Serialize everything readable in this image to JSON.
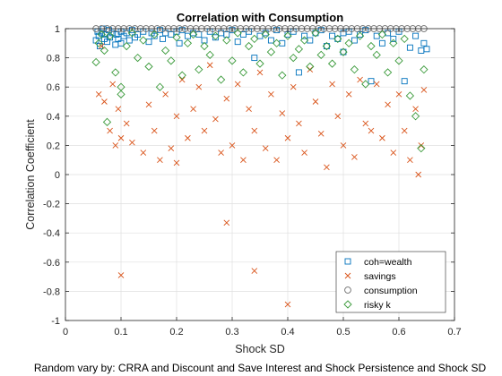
{
  "chart_data": {
    "type": "scatter",
    "title": "Correlation with Consumption",
    "xlabel": "Shock SD",
    "ylabel": "Correlation Coefficient",
    "footnote": "Random vary by: CRRA and Discount and Save Interest and Shock Persistence and Shock SD",
    "xlim": [
      0,
      0.7
    ],
    "ylim": [
      -1,
      1
    ],
    "xticks": [
      0,
      0.1,
      0.2,
      0.3,
      0.4,
      0.5,
      0.6,
      0.7
    ],
    "yticks": [
      -1,
      -0.8,
      -0.6,
      -0.4,
      -0.2,
      0,
      0.2,
      0.4,
      0.6,
      0.8,
      1
    ],
    "grid": true,
    "legend_position": "bottom-right",
    "series": [
      {
        "name": "coh=wealth",
        "marker": "square",
        "color": "#0072BD",
        "x": [
          0.055,
          0.058,
          0.06,
          0.062,
          0.065,
          0.068,
          0.07,
          0.072,
          0.075,
          0.078,
          0.08,
          0.085,
          0.09,
          0.092,
          0.095,
          0.1,
          0.1,
          0.105,
          0.11,
          0.115,
          0.12,
          0.125,
          0.13,
          0.14,
          0.15,
          0.155,
          0.16,
          0.17,
          0.175,
          0.18,
          0.19,
          0.2,
          0.205,
          0.21,
          0.22,
          0.23,
          0.24,
          0.25,
          0.26,
          0.27,
          0.28,
          0.29,
          0.3,
          0.31,
          0.32,
          0.33,
          0.34,
          0.35,
          0.36,
          0.37,
          0.38,
          0.39,
          0.4,
          0.41,
          0.42,
          0.43,
          0.44,
          0.45,
          0.46,
          0.47,
          0.48,
          0.49,
          0.5,
          0.5,
          0.51,
          0.52,
          0.53,
          0.54,
          0.55,
          0.56,
          0.57,
          0.58,
          0.59,
          0.6,
          0.61,
          0.62,
          0.63,
          0.64,
          0.645,
          0.65
        ],
        "y": [
          0.92,
          0.98,
          0.95,
          0.88,
          0.97,
          1.0,
          0.93,
          0.96,
          0.91,
          0.99,
          0.94,
          0.97,
          0.89,
          0.96,
          0.93,
          0.98,
          0.9,
          0.95,
          0.97,
          0.92,
          0.99,
          0.94,
          0.96,
          0.98,
          0.91,
          0.97,
          0.95,
          0.99,
          0.93,
          0.97,
          0.96,
          0.98,
          0.9,
          0.99,
          0.95,
          0.97,
          0.96,
          0.92,
          0.98,
          0.94,
          0.97,
          0.96,
          0.99,
          0.91,
          0.96,
          0.98,
          0.8,
          0.95,
          0.97,
          0.92,
          0.99,
          0.9,
          0.96,
          0.98,
          0.7,
          0.95,
          0.92,
          0.97,
          0.99,
          0.88,
          0.95,
          0.93,
          0.84,
          0.97,
          0.98,
          0.92,
          0.96,
          0.99,
          0.64,
          0.95,
          0.9,
          0.97,
          0.93,
          0.98,
          0.64,
          0.87,
          0.95,
          0.85,
          0.9,
          0.86
        ]
      },
      {
        "name": "savings",
        "marker": "x",
        "color": "#D95319",
        "x": [
          0.06,
          0.065,
          0.07,
          0.08,
          0.085,
          0.09,
          0.095,
          0.1,
          0.1,
          0.11,
          0.12,
          0.14,
          0.15,
          0.16,
          0.17,
          0.18,
          0.19,
          0.2,
          0.2,
          0.21,
          0.22,
          0.23,
          0.24,
          0.25,
          0.26,
          0.27,
          0.28,
          0.29,
          0.29,
          0.3,
          0.31,
          0.32,
          0.33,
          0.34,
          0.34,
          0.35,
          0.36,
          0.37,
          0.38,
          0.39,
          0.4,
          0.4,
          0.41,
          0.42,
          0.43,
          0.44,
          0.45,
          0.46,
          0.47,
          0.48,
          0.49,
          0.5,
          0.51,
          0.52,
          0.53,
          0.54,
          0.55,
          0.56,
          0.57,
          0.58,
          0.59,
          0.6,
          0.61,
          0.62,
          0.63,
          0.635,
          0.64,
          0.645
        ],
        "y": [
          0.55,
          0.88,
          0.5,
          0.3,
          0.62,
          0.2,
          0.45,
          -0.69,
          0.25,
          0.35,
          0.22,
          0.15,
          0.48,
          0.3,
          0.1,
          0.55,
          0.18,
          0.4,
          0.08,
          0.65,
          0.25,
          0.45,
          0.6,
          0.3,
          0.75,
          0.38,
          0.15,
          0.52,
          -0.33,
          0.2,
          0.62,
          0.1,
          0.45,
          -0.66,
          0.3,
          0.7,
          0.18,
          0.55,
          0.1,
          0.42,
          0.25,
          -0.89,
          0.6,
          0.35,
          0.15,
          0.72,
          0.5,
          0.28,
          0.05,
          0.62,
          0.4,
          0.2,
          0.55,
          0.12,
          0.65,
          0.35,
          0.3,
          0.62,
          0.25,
          0.48,
          0.15,
          0.55,
          0.3,
          0.1,
          0.45,
          0.0,
          0.2,
          0.58
        ]
      },
      {
        "name": "consumption",
        "marker": "circle",
        "color": "#6E6E6E",
        "x": [
          0.055,
          0.065,
          0.075,
          0.085,
          0.095,
          0.105,
          0.115,
          0.125,
          0.135,
          0.145,
          0.155,
          0.165,
          0.175,
          0.185,
          0.195,
          0.205,
          0.215,
          0.225,
          0.235,
          0.245,
          0.255,
          0.265,
          0.275,
          0.285,
          0.295,
          0.305,
          0.315,
          0.325,
          0.335,
          0.345,
          0.355,
          0.365,
          0.375,
          0.385,
          0.395,
          0.405,
          0.415,
          0.425,
          0.435,
          0.445,
          0.455,
          0.465,
          0.475,
          0.485,
          0.495,
          0.505,
          0.515,
          0.525,
          0.535,
          0.545,
          0.555,
          0.565,
          0.575,
          0.585,
          0.595,
          0.605,
          0.615,
          0.625,
          0.635,
          0.645
        ],
        "y": [
          1.0,
          1.0,
          1.0,
          1.0,
          1.0,
          1.0,
          1.0,
          1.0,
          1.0,
          1.0,
          1.0,
          1.0,
          1.0,
          1.0,
          1.0,
          1.0,
          1.0,
          1.0,
          1.0,
          1.0,
          1.0,
          1.0,
          1.0,
          1.0,
          1.0,
          1.0,
          1.0,
          1.0,
          1.0,
          1.0,
          1.0,
          1.0,
          1.0,
          1.0,
          1.0,
          1.0,
          1.0,
          1.0,
          1.0,
          1.0,
          1.0,
          1.0,
          1.0,
          1.0,
          1.0,
          1.0,
          1.0,
          1.0,
          1.0,
          1.0,
          1.0,
          1.0,
          1.0,
          1.0,
          1.0,
          1.0,
          1.0,
          1.0,
          1.0,
          1.0
        ]
      },
      {
        "name": "risky k",
        "marker": "diamond",
        "color": "#3A9A3A",
        "x": [
          0.055,
          0.06,
          0.065,
          0.07,
          0.075,
          0.08,
          0.09,
          0.1,
          0.1,
          0.11,
          0.12,
          0.13,
          0.14,
          0.15,
          0.16,
          0.17,
          0.18,
          0.19,
          0.2,
          0.21,
          0.22,
          0.23,
          0.24,
          0.25,
          0.26,
          0.27,
          0.28,
          0.29,
          0.3,
          0.31,
          0.32,
          0.33,
          0.34,
          0.35,
          0.36,
          0.37,
          0.38,
          0.39,
          0.4,
          0.41,
          0.42,
          0.43,
          0.44,
          0.45,
          0.46,
          0.47,
          0.48,
          0.49,
          0.5,
          0.51,
          0.52,
          0.53,
          0.54,
          0.55,
          0.56,
          0.57,
          0.58,
          0.59,
          0.6,
          0.61,
          0.62,
          0.63,
          0.64,
          0.645
        ],
        "y": [
          0.77,
          0.9,
          0.96,
          0.85,
          0.36,
          0.95,
          0.7,
          0.6,
          0.55,
          0.88,
          0.97,
          0.8,
          0.92,
          0.74,
          0.96,
          0.6,
          0.85,
          0.78,
          0.94,
          0.68,
          0.9,
          0.96,
          0.72,
          0.88,
          0.82,
          0.95,
          0.65,
          0.92,
          0.78,
          0.97,
          0.7,
          0.88,
          0.93,
          0.76,
          0.96,
          0.84,
          0.9,
          0.68,
          0.95,
          0.8,
          0.86,
          0.92,
          0.74,
          0.97,
          0.82,
          0.88,
          0.76,
          0.93,
          0.84,
          0.9,
          0.72,
          0.95,
          0.62,
          0.88,
          0.82,
          0.96,
          0.7,
          0.9,
          0.78,
          0.93,
          0.54,
          0.4,
          0.18,
          0.72
        ]
      }
    ]
  }
}
